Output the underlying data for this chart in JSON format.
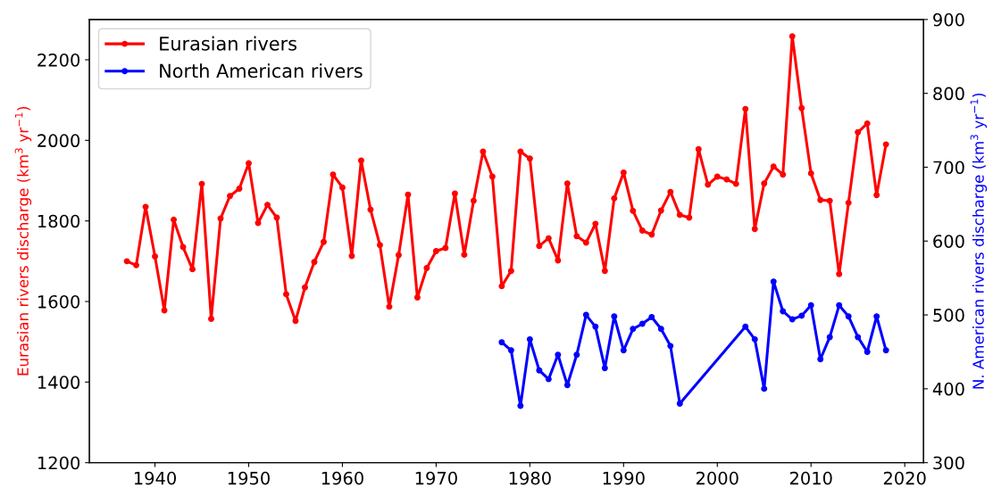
{
  "chart_data": {
    "type": "line",
    "ylabel": "Eurasian rivers discharge (km$^{3}$ yr$^{−1}$)",
    "y2label": "N. American rivers discharge (km$^{3}$ yr$^{−1}$)",
    "series": [
      {
        "name": "Eurasian rivers",
        "color": "#ff0000",
        "x": [
          1937,
          1938,
          1939,
          1940,
          1941,
          1942,
          1943,
          1944,
          1945,
          1946,
          1947,
          1948,
          1949,
          1950,
          1951,
          1952,
          1953,
          1954,
          1955,
          1956,
          1957,
          1958,
          1959,
          1960,
          1961,
          1962,
          1963,
          1964,
          1965,
          1966,
          1967,
          1968,
          1969,
          1970,
          1971,
          1972,
          1973,
          1974,
          1975,
          1976,
          1977,
          1978,
          1979,
          1980,
          1981,
          1982,
          1983,
          1984,
          1985,
          1986,
          1987,
          1988,
          1989,
          1990,
          1991,
          1992,
          1993,
          1994,
          1995,
          1996,
          1997,
          1998,
          1999,
          2000,
          2001,
          2002,
          2003,
          2004,
          2005,
          2006,
          2007,
          2008,
          2009,
          2010,
          2011,
          2012,
          2013,
          2014,
          2015,
          2016,
          2017,
          2018
        ],
        "values": [
          1700,
          1690,
          1835,
          1712,
          1578,
          1803,
          1735,
          1680,
          1892,
          1557,
          1806,
          1862,
          1880,
          1943,
          1795,
          1840,
          1808,
          1618,
          1552,
          1635,
          1698,
          1748,
          1915,
          1883,
          1713,
          1950,
          1828,
          1740,
          1587,
          1715,
          1865,
          1610,
          1683,
          1725,
          1733,
          1868,
          1716,
          1850,
          1972,
          1910,
          1638,
          1676,
          1972,
          1955,
          1738,
          1757,
          1702,
          1893,
          1762,
          1746,
          1793,
          1676,
          1856,
          1920,
          1825,
          1776,
          1766,
          1826,
          1872,
          1815,
          1808,
          1978,
          1890,
          1910,
          1903,
          1892,
          2078,
          1780,
          1893,
          1935,
          1915,
          2258,
          2080,
          1918,
          1852,
          1850,
          1668,
          1845,
          2020,
          2042,
          1864,
          1990
        ]
      },
      {
        "name": "North American rivers",
        "color": "#0000ff",
        "axis": "y2",
        "x": [
          1977,
          1978,
          1979,
          1980,
          1981,
          1982,
          1983,
          1984,
          1985,
          1986,
          1987,
          1988,
          1989,
          1990,
          1991,
          1992,
          1993,
          1994,
          1995,
          1996,
          2003,
          2004,
          2005,
          2006,
          2007,
          2008,
          2009,
          2010,
          2011,
          2012,
          2013,
          2014,
          2015,
          2016,
          2017,
          2018
        ],
        "values": [
          463,
          452,
          377,
          467,
          425,
          413,
          446,
          405,
          446,
          500,
          484,
          428,
          498,
          452,
          481,
          488,
          497,
          481,
          458,
          380,
          484,
          467,
          400,
          545,
          505,
          494,
          499,
          513,
          440,
          470,
          513,
          498,
          470,
          450,
          498,
          452
        ]
      }
    ],
    "xlim": [
      1933,
      2022
    ],
    "xticks": [
      1940,
      1950,
      1960,
      1970,
      1980,
      1990,
      2000,
      2010,
      2020
    ],
    "ylim": [
      1200,
      2300
    ],
    "yticks": [
      1200,
      1400,
      1600,
      1800,
      2000,
      2200
    ],
    "y2lim": [
      300,
      900
    ],
    "y2ticks": [
      300,
      400,
      500,
      600,
      700,
      800,
      900
    ],
    "marker": "circle",
    "line_style": "solid",
    "legend": "top left",
    "grid": false
  }
}
